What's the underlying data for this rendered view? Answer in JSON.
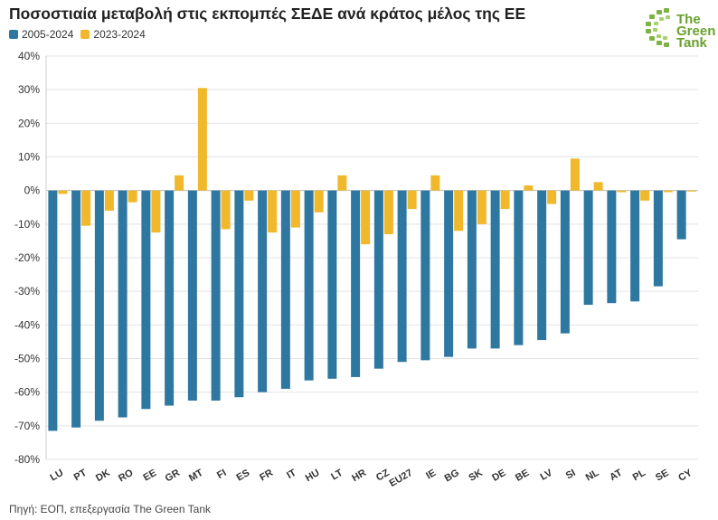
{
  "chart_data": {
    "type": "bar",
    "title": "Ποσοστιαία μεταβολή στις εκπομπές ΣΕΔΕ ανά κράτος μέλος της ΕΕ",
    "xlabel": "",
    "ylabel": "",
    "ylim": [
      -80,
      40
    ],
    "yticks": [
      40,
      30,
      20,
      10,
      0,
      -10,
      -20,
      -30,
      -40,
      -50,
      -60,
      -70,
      -80
    ],
    "ytick_labels": [
      "40%",
      "30%",
      "20%",
      "10%",
      "0%",
      "-10%",
      "-20%",
      "-30%",
      "-40%",
      "-50%",
      "-60%",
      "-70%",
      "-80%"
    ],
    "grid": true,
    "legend_position": "top-left",
    "categories": [
      "LU",
      "PT",
      "DK",
      "RO",
      "EE",
      "GR",
      "MT",
      "FI",
      "ES",
      "FR",
      "IT",
      "HU",
      "LT",
      "HR",
      "CZ",
      "EU27",
      "IE",
      "BG",
      "SK",
      "DE",
      "BE",
      "LV",
      "SI",
      "NL",
      "AT",
      "PL",
      "SE",
      "CY"
    ],
    "series": [
      {
        "name": "2005-2024",
        "color": "#2e77a1",
        "values": [
          -71.5,
          -70.5,
          -68.5,
          -67.5,
          -65,
          -64,
          -62.5,
          -62.5,
          -61.5,
          -60,
          -59,
          -56.5,
          -56,
          -55.5,
          -53,
          -51,
          -50.5,
          -49.5,
          -47,
          -47,
          -46,
          -44.5,
          -42.5,
          -34,
          -33.5,
          -33,
          -28.5,
          -14.5
        ]
      },
      {
        "name": "2023-2024",
        "color": "#f0b82a",
        "values": [
          -1,
          -10.5,
          -6,
          -3.5,
          -12.5,
          4.5,
          30.5,
          -11.5,
          -3,
          -12.5,
          -11,
          -6.5,
          4.5,
          -16,
          -13,
          -5.5,
          4.5,
          -12,
          -10,
          -5.5,
          1.5,
          -4,
          9.5,
          2.5,
          -0.5,
          -3,
          -0.5,
          -0.3
        ]
      }
    ]
  },
  "source": "Πηγή: ΕΟΠ, επεξεργασία The Green Tank",
  "logo": {
    "line1": "The",
    "line2": "Green",
    "line3": "Tank",
    "color": "#6aa12f"
  }
}
